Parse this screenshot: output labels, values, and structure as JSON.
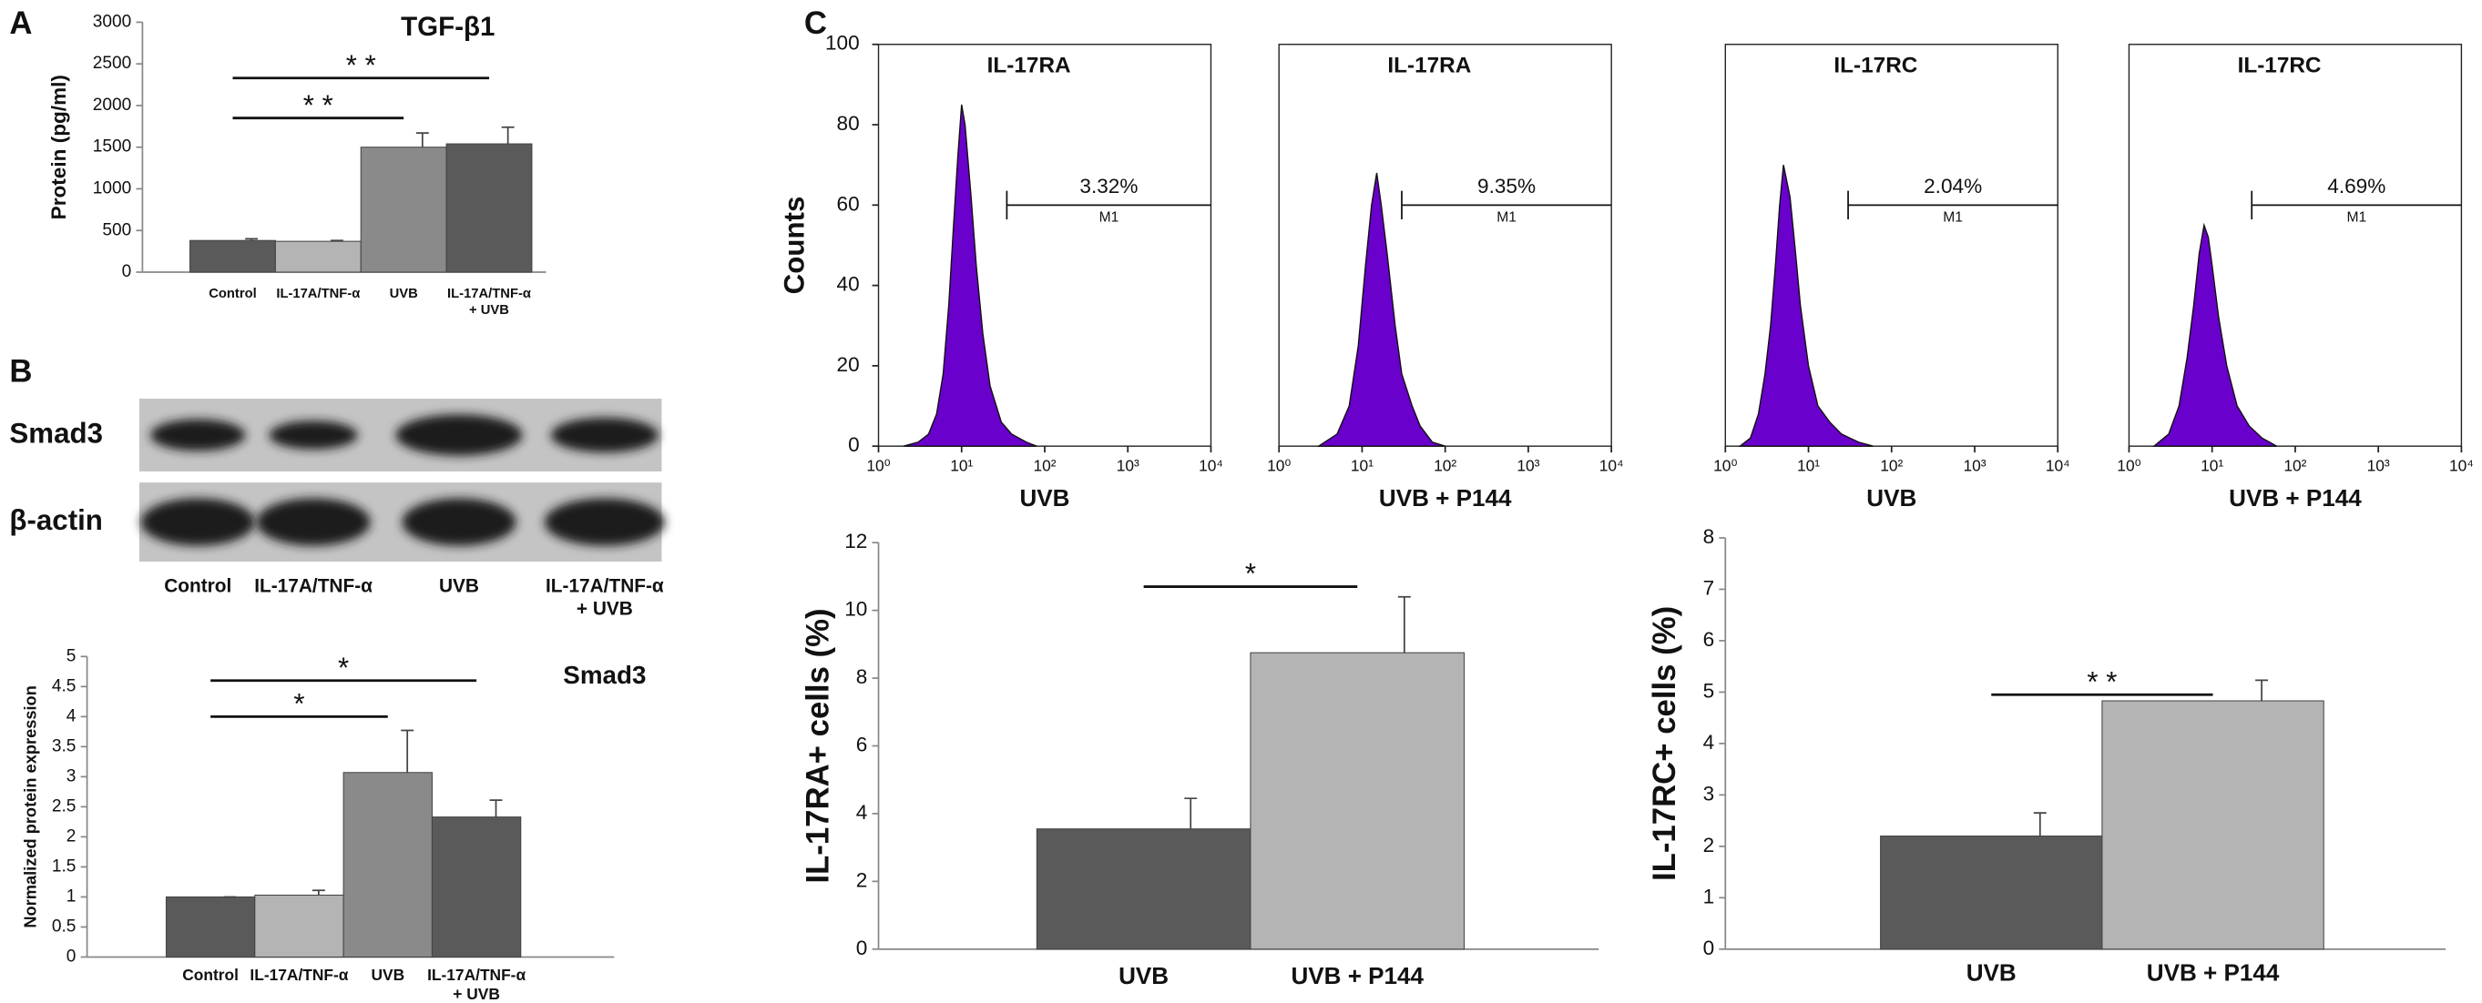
{
  "panels": [
    "A",
    "B",
    "C"
  ],
  "blot": {
    "rows": [
      "Smad3",
      "β-actin"
    ],
    "lanes": [
      "Control",
      "IL-17A/TNF-α",
      "UVB",
      [
        "IL-17A/TNF-α",
        "+ UVB"
      ]
    ]
  },
  "chart_data": [
    {
      "type": "bar",
      "title": "TGF-β1",
      "ylabel": "Protein (pg/ml)",
      "categories": [
        "Control",
        "IL-17A/TNF-α",
        "UVB",
        [
          "IL-17A/TNF-α",
          "+ UVB"
        ]
      ],
      "values": [
        380,
        370,
        1500,
        1540
      ],
      "errors": [
        20,
        10,
        170,
        200
      ],
      "colors": [
        "#5a5a5a",
        "#b4b4b4",
        "#8a8a8a",
        "#5a5a5a"
      ],
      "ylim": [
        0,
        3000
      ],
      "yticks": [
        0,
        500,
        1000,
        1500,
        2000,
        2500,
        3000
      ],
      "annotations": [
        {
          "text": "* *",
          "y": 2330,
          "from": 0,
          "to": 3
        },
        {
          "text": "* *",
          "y": 1850,
          "from": 0,
          "to": 2
        }
      ]
    },
    {
      "type": "bar",
      "title": "Smad3",
      "ylabel": "Normalized protein expression",
      "categories": [
        "Control",
        "IL-17A/TNF-α",
        "UVB",
        [
          "IL-17A/TNF-α",
          "+ UVB"
        ]
      ],
      "values": [
        1.0,
        1.03,
        3.07,
        2.33
      ],
      "errors": [
        0,
        0.08,
        0.7,
        0.28
      ],
      "colors": [
        "#5a5a5a",
        "#b4b4b4",
        "#8a8a8a",
        "#5a5a5a"
      ],
      "ylim": [
        0,
        5
      ],
      "yticks": [
        0,
        0.5,
        1,
        1.5,
        2,
        2.5,
        3,
        3.5,
        4,
        4.5,
        5
      ],
      "annotations": [
        {
          "text": "*",
          "y": 4.6,
          "from": 0,
          "to": 3
        },
        {
          "text": "*",
          "y": 4.0,
          "from": 0,
          "to": 2
        }
      ]
    },
    {
      "type": "flow",
      "title": "IL-17RA",
      "xlabel": "UVB",
      "ylabel": "Counts",
      "color": "#6a00cc",
      "log_x": true,
      "xlim": [
        1,
        10000
      ],
      "xticks": [
        {
          "value": 1,
          "label": "10⁰"
        },
        {
          "value": 10,
          "label": "10¹"
        },
        {
          "value": 100,
          "label": "10²"
        },
        {
          "value": 1000,
          "label": "10³"
        },
        {
          "value": 10000,
          "label": "10⁴"
        }
      ],
      "ylim": [
        0,
        100
      ],
      "yticks": [
        0,
        20,
        40,
        60,
        80,
        100
      ],
      "x": [
        2,
        3,
        4,
        5,
        6,
        7,
        8,
        9,
        10,
        11,
        13,
        15,
        18,
        22,
        30,
        40,
        60,
        80
      ],
      "values": [
        0,
        1,
        3,
        8,
        18,
        35,
        55,
        72,
        85,
        80,
        62,
        45,
        28,
        15,
        6,
        3,
        1,
        0
      ],
      "gate": {
        "label": "M1",
        "x": [
          35,
          10000
        ],
        "y": 60
      },
      "percent": 3.32,
      "percent_label": "3.32%"
    },
    {
      "type": "flow",
      "title": "IL-17RA",
      "xlabel": "UVB + P144",
      "color": "#6a00cc",
      "log_x": true,
      "xlim": [
        1,
        10000
      ],
      "xticks": [
        {
          "value": 1,
          "label": "10⁰"
        },
        {
          "value": 10,
          "label": "10¹"
        },
        {
          "value": 100,
          "label": "10²"
        },
        {
          "value": 1000,
          "label": "10³"
        },
        {
          "value": 10000,
          "label": "10⁴"
        }
      ],
      "ylim": [
        0,
        100
      ],
      "x": [
        3,
        5,
        7,
        9,
        11,
        13,
        15,
        17,
        20,
        25,
        30,
        40,
        50,
        70,
        100
      ],
      "values": [
        0,
        3,
        10,
        25,
        45,
        60,
        68,
        60,
        48,
        30,
        18,
        10,
        5,
        1,
        0
      ],
      "gate": {
        "label": "M1",
        "x": [
          30,
          10000
        ],
        "y": 60
      },
      "percent": 9.35,
      "percent_label": "9.35%"
    },
    {
      "type": "flow",
      "title": "IL-17RC",
      "xlabel": "UVB",
      "color": "#6a00cc",
      "log_x": true,
      "xlim": [
        1,
        10000
      ],
      "xticks": [
        {
          "value": 1,
          "label": "10⁰"
        },
        {
          "value": 10,
          "label": "10¹"
        },
        {
          "value": 100,
          "label": "10²"
        },
        {
          "value": 1000,
          "label": "10³"
        },
        {
          "value": 10000,
          "label": "10⁴"
        }
      ],
      "ylim": [
        0,
        100
      ],
      "x": [
        1.5,
        2,
        2.5,
        3,
        3.5,
        4,
        4.5,
        5,
        6,
        7,
        8,
        10,
        13,
        18,
        25,
        40,
        60
      ],
      "values": [
        0,
        2,
        8,
        18,
        30,
        45,
        60,
        70,
        62,
        48,
        35,
        20,
        10,
        6,
        3,
        1,
        0
      ],
      "gate": {
        "label": "M1",
        "x": [
          30,
          10000
        ],
        "y": 60
      },
      "percent": 2.04,
      "percent_label": "2.04%"
    },
    {
      "type": "flow",
      "title": "IL-17RC",
      "xlabel": "UVB + P144",
      "color": "#6a00cc",
      "log_x": true,
      "xlim": [
        1,
        10000
      ],
      "xticks": [
        {
          "value": 1,
          "label": "10⁰"
        },
        {
          "value": 10,
          "label": "10¹"
        },
        {
          "value": 100,
          "label": "10²"
        },
        {
          "value": 1000,
          "label": "10³"
        },
        {
          "value": 10000,
          "label": "10⁴"
        }
      ],
      "ylim": [
        0,
        100
      ],
      "x": [
        2,
        3,
        4,
        5,
        6,
        7,
        8,
        9,
        10,
        12,
        15,
        20,
        28,
        40,
        60
      ],
      "values": [
        0,
        3,
        10,
        22,
        35,
        48,
        55,
        52,
        45,
        32,
        20,
        10,
        5,
        2,
        0
      ],
      "gate": {
        "label": "M1",
        "x": [
          30,
          10000
        ],
        "y": 60
      },
      "percent": 4.69,
      "percent_label": "4.69%"
    },
    {
      "type": "bar",
      "ylabel": "IL-17RA+ cells (%)",
      "categories": [
        "UVB",
        "UVB + P144"
      ],
      "values": [
        3.55,
        8.75
      ],
      "errors": [
        0.9,
        1.65
      ],
      "colors": [
        "#5a5a5a",
        "#b4b4b4"
      ],
      "ylim": [
        0,
        12
      ],
      "yticks": [
        0,
        2,
        4,
        6,
        8,
        10,
        12
      ],
      "annotations": [
        {
          "text": "*",
          "y": 10.7,
          "from": 0,
          "to": 1
        }
      ]
    },
    {
      "type": "bar",
      "ylabel": "IL-17RC+ cells (%)",
      "categories": [
        "UVB",
        "UVB + P144"
      ],
      "values": [
        2.2,
        4.83
      ],
      "errors": [
        0.45,
        0.4
      ],
      "colors": [
        "#5a5a5a",
        "#b4b4b4"
      ],
      "ylim": [
        0,
        8
      ],
      "yticks": [
        0,
        1,
        2,
        3,
        4,
        5,
        6,
        7,
        8
      ],
      "annotations": [
        {
          "text": "* *",
          "y": 4.95,
          "from": 0,
          "to": 1
        }
      ]
    }
  ]
}
